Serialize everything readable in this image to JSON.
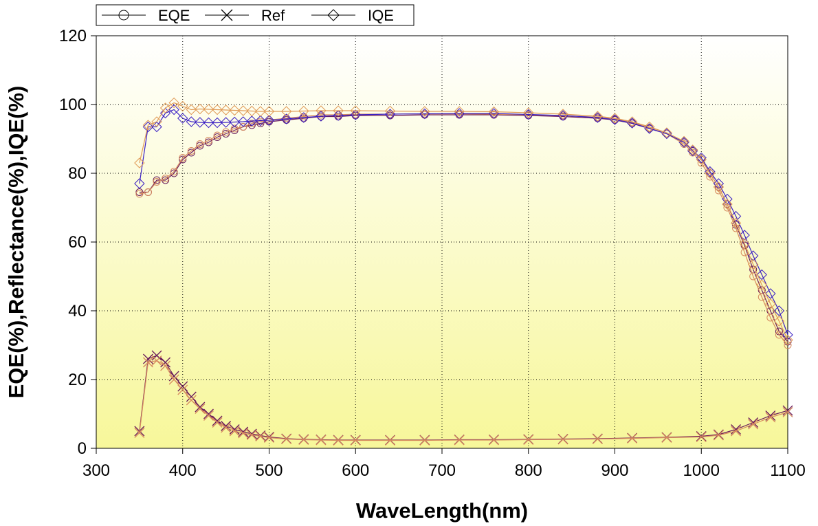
{
  "chart_data": {
    "type": "line",
    "xlabel": "WaveLength(nm)",
    "ylabel": "EQE(%),Reflectance(%),IQE(%)",
    "xlim": [
      300,
      1100
    ],
    "ylim": [
      0,
      120
    ],
    "xticks": [
      "300",
      "400",
      "500",
      "600",
      "700",
      "800",
      "900",
      "1000",
      "1100"
    ],
    "yticks": [
      "0",
      "20",
      "40",
      "60",
      "80",
      "100",
      "120"
    ],
    "grid": true,
    "legend_position": "top-left",
    "background": "vertical gradient from white (top) to pale yellow (bottom)",
    "series": [
      {
        "name": "EQE",
        "marker": "circle",
        "group": "upper",
        "pairs": [
          {
            "color": "#6a1b5a",
            "x": [
              350,
              360,
              370,
              380,
              390,
              400,
              410,
              420,
              430,
              440,
              450,
              460,
              470,
              480,
              490,
              500,
              520,
              540,
              560,
              580,
              600,
              640,
              680,
              720,
              760,
              800,
              840,
              880,
              900,
              920,
              940,
              960,
              980,
              990,
              1000,
              1010,
              1020,
              1030,
              1040,
              1050,
              1060,
              1070,
              1080,
              1090,
              1100
            ],
            "y": [
              74.5,
              74.5,
              78,
              78,
              80,
              84,
              86,
              88,
              89,
              90.5,
              91.5,
              92.5,
              93.5,
              94,
              94.5,
              95,
              95.5,
              96,
              96.5,
              96.5,
              96.8,
              96.8,
              97,
              97,
              97,
              96.8,
              96.5,
              96,
              95.5,
              94.5,
              93,
              91.5,
              89,
              86.5,
              84,
              80,
              76,
              71,
              65,
              59,
              52,
              46,
              40,
              34,
              31
            ]
          },
          {
            "color": "#d68a5e",
            "x": [
              350,
              360,
              370,
              380,
              390,
              400,
              410,
              420,
              430,
              440,
              450,
              460,
              470,
              480,
              490,
              500,
              520,
              540,
              560,
              580,
              600,
              640,
              680,
              720,
              760,
              800,
              840,
              880,
              900,
              920,
              940,
              960,
              980,
              990,
              1000,
              1010,
              1020,
              1030,
              1040,
              1050,
              1060,
              1070,
              1080,
              1090,
              1100
            ],
            "y": [
              74,
              74.5,
              77.5,
              78.5,
              80.5,
              84.5,
              86.5,
              88.5,
              89.5,
              91,
              92,
              93,
              93.5,
              94.5,
              95,
              95.5,
              96,
              96.5,
              97,
              97,
              97.2,
              97.2,
              97.3,
              97.3,
              97.2,
              97,
              96.8,
              96.3,
              95.8,
              94.8,
              93.2,
              91.5,
              88.5,
              86,
              83,
              79,
              75,
              70,
              64,
              57,
              50,
              44,
              38,
              33,
              30
            ]
          }
        ]
      },
      {
        "name": "Ref",
        "marker": "x",
        "group": "lower",
        "pairs": [
          {
            "color": "#6a1b5a",
            "x": [
              350,
              360,
              370,
              380,
              390,
              400,
              410,
              420,
              430,
              440,
              450,
              460,
              470,
              480,
              490,
              500,
              520,
              540,
              560,
              580,
              600,
              640,
              680,
              720,
              760,
              800,
              840,
              880,
              920,
              960,
              1000,
              1020,
              1040,
              1060,
              1080,
              1100
            ],
            "y": [
              5,
              26,
              27,
              25,
              21,
              18,
              15,
              12,
              10,
              8,
              6.5,
              5.5,
              4.8,
              4.2,
              3.7,
              3.3,
              2.8,
              2.6,
              2.5,
              2.4,
              2.4,
              2.4,
              2.4,
              2.5,
              2.5,
              2.6,
              2.7,
              2.8,
              3,
              3.2,
              3.5,
              4,
              5.5,
              7.5,
              9.5,
              11
            ]
          },
          {
            "color": "#d68a5e",
            "x": [
              350,
              360,
              370,
              380,
              390,
              400,
              410,
              420,
              430,
              440,
              450,
              460,
              470,
              480,
              490,
              500,
              520,
              540,
              560,
              580,
              600,
              640,
              680,
              720,
              760,
              800,
              840,
              880,
              920,
              960,
              1000,
              1020,
              1040,
              1060,
              1080,
              1100
            ],
            "y": [
              4.5,
              25,
              25.5,
              24,
              20,
              17,
              14,
              11.5,
              9.5,
              7.5,
              6,
              5,
              4.4,
              3.9,
              3.5,
              3.1,
              2.7,
              2.5,
              2.4,
              2.3,
              2.3,
              2.3,
              2.3,
              2.4,
              2.4,
              2.5,
              2.6,
              2.7,
              2.9,
              3.1,
              3.3,
              3.8,
              5,
              7,
              9,
              10.5
            ]
          }
        ]
      },
      {
        "name": "IQE",
        "marker": "diamond",
        "group": "upper",
        "pairs": [
          {
            "color": "#3a1fc4",
            "x": [
              350,
              360,
              370,
              380,
              390,
              400,
              410,
              420,
              430,
              440,
              450,
              460,
              470,
              480,
              490,
              500,
              520,
              540,
              560,
              580,
              600,
              640,
              680,
              720,
              760,
              800,
              840,
              880,
              900,
              920,
              940,
              960,
              980,
              990,
              1000,
              1010,
              1020,
              1030,
              1040,
              1050,
              1060,
              1070,
              1080,
              1090,
              1100
            ],
            "y": [
              77,
              93.5,
              93.5,
              97.5,
              98.5,
              96,
              95,
              94.8,
              94.7,
              94.7,
              94.8,
              94.9,
              95,
              95.2,
              95.3,
              95.4,
              95.8,
              96.2,
              96.6,
              96.8,
              97,
              97.2,
              97.3,
              97.4,
              97.4,
              97.1,
              96.8,
              96.2,
              95.6,
              94.6,
              93,
              91.5,
              89,
              86.5,
              84.5,
              80.5,
              77,
              72.5,
              67.5,
              62,
              56,
              50.5,
              45,
              40,
              33
            ]
          },
          {
            "color": "#e09a56",
            "x": [
              350,
              360,
              370,
              380,
              390,
              400,
              410,
              420,
              430,
              440,
              450,
              460,
              470,
              480,
              490,
              500,
              520,
              540,
              560,
              580,
              600,
              640,
              680,
              720,
              760,
              800,
              840,
              880,
              900,
              920,
              940,
              960,
              980,
              990,
              1000,
              1010,
              1020,
              1030,
              1040,
              1050,
              1060,
              1070,
              1080,
              1090,
              1100
            ],
            "y": [
              83,
              94,
              95,
              99,
              100.5,
              99.5,
              98.5,
              98.7,
              98.6,
              98.5,
              98.4,
              98.3,
              98.2,
              98.1,
              98,
              98,
              98,
              98.1,
              98.2,
              98.2,
              98.2,
              98.1,
              98,
              98,
              97.9,
              97.6,
              97.2,
              96.6,
              96,
              95,
              93.5,
              91.8,
              89.3,
              86.8,
              84,
              80,
              76,
              71,
              65.5,
              59.5,
              53.5,
              47.5,
              42,
              37,
              31.5
            ]
          }
        ]
      }
    ]
  }
}
